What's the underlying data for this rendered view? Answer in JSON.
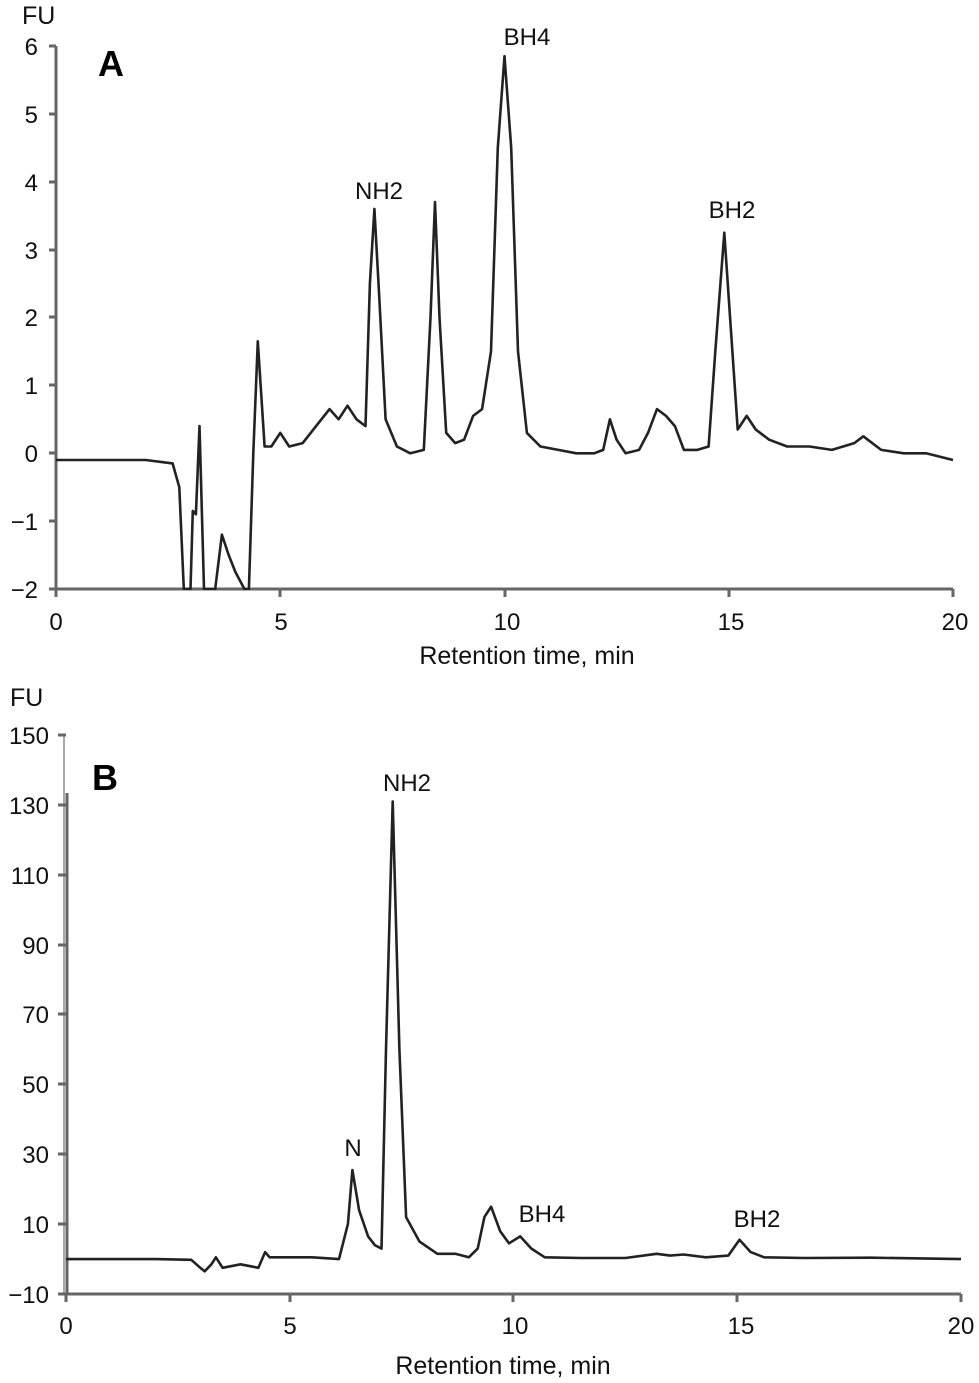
{
  "chart_data": [
    {
      "panel": "A",
      "type": "line",
      "title": "",
      "ylabel": "FU",
      "xlabel": "Retention time, min",
      "xlim": [
        0,
        20
      ],
      "ylim": [
        -2,
        6
      ],
      "x_ticks": [
        "0",
        "5",
        "10",
        "15",
        "20"
      ],
      "y_ticks": [
        "−2",
        "−1",
        "0",
        "1",
        "2",
        "3",
        "4",
        "5",
        "6"
      ],
      "grid": false,
      "annotations": [
        {
          "text": "NH2",
          "x": 7.1,
          "y": 3.6
        },
        {
          "text": "BH4",
          "x": 10.0,
          "y": 5.85
        },
        {
          "text": "BH2",
          "x": 14.9,
          "y": 3.25
        }
      ],
      "series": [
        {
          "name": "chromatogram A",
          "x": [
            0,
            1,
            2,
            2.6,
            2.75,
            2.85,
            3.0,
            3.05,
            3.12,
            3.2,
            3.3,
            3.4,
            3.55,
            3.7,
            3.85,
            4.0,
            4.2,
            4.3,
            4.4,
            4.5,
            4.65,
            4.8,
            5.0,
            5.2,
            5.5,
            5.8,
            6.1,
            6.3,
            6.5,
            6.7,
            6.9,
            7.0,
            7.1,
            7.2,
            7.35,
            7.6,
            7.9,
            8.2,
            8.35,
            8.45,
            8.55,
            8.7,
            8.9,
            9.1,
            9.3,
            9.5,
            9.7,
            9.85,
            10.0,
            10.15,
            10.3,
            10.5,
            10.8,
            11.2,
            11.6,
            12.0,
            12.2,
            12.35,
            12.5,
            12.7,
            13.0,
            13.2,
            13.4,
            13.6,
            13.8,
            14.0,
            14.3,
            14.55,
            14.7,
            14.9,
            15.05,
            15.2,
            15.4,
            15.6,
            15.9,
            16.3,
            16.8,
            17.3,
            17.8,
            18.0,
            18.4,
            18.9,
            19.4,
            20.0
          ],
          "values": [
            -0.1,
            -0.1,
            -0.1,
            -0.15,
            -0.5,
            -2.0,
            -2.0,
            -0.85,
            -0.9,
            0.4,
            -2.0,
            -2.0,
            -2.0,
            -1.2,
            -1.5,
            -1.75,
            -2.0,
            -2.0,
            0.0,
            1.65,
            0.1,
            0.1,
            0.3,
            0.1,
            0.15,
            0.4,
            0.65,
            0.5,
            0.7,
            0.5,
            0.4,
            2.5,
            3.6,
            2.4,
            0.5,
            0.1,
            0.0,
            0.05,
            2.0,
            3.7,
            2.0,
            0.3,
            0.15,
            0.2,
            0.55,
            0.65,
            1.5,
            4.5,
            5.85,
            4.5,
            1.5,
            0.3,
            0.1,
            0.05,
            0.0,
            0.0,
            0.05,
            0.5,
            0.2,
            0.0,
            0.05,
            0.3,
            0.65,
            0.55,
            0.4,
            0.05,
            0.05,
            0.1,
            1.5,
            3.25,
            1.8,
            0.35,
            0.55,
            0.35,
            0.2,
            0.1,
            0.1,
            0.05,
            0.15,
            0.25,
            0.05,
            0.0,
            0.0,
            -0.1
          ]
        }
      ]
    },
    {
      "panel": "B",
      "type": "line",
      "title": "",
      "ylabel": "FU",
      "xlabel": "Retention time, min",
      "xlim": [
        0,
        20
      ],
      "ylim": [
        -10,
        150
      ],
      "x_ticks": [
        "0",
        "5",
        "10",
        "15",
        "20"
      ],
      "y_ticks": [
        "−10",
        "10",
        "30",
        "50",
        "70",
        "90",
        "110",
        "130",
        "150"
      ],
      "grid": false,
      "annotations": [
        {
          "text": "N",
          "x": 6.4,
          "y": 26
        },
        {
          "text": "NH2",
          "x": 7.3,
          "y": 131
        },
        {
          "text": "BH4",
          "x": 10.2,
          "y": 6.5
        },
        {
          "text": "BH2",
          "x": 15.1,
          "y": 6
        }
      ],
      "series": [
        {
          "name": "chromatogram B",
          "x": [
            0,
            1,
            2,
            2.8,
            3.0,
            3.1,
            3.25,
            3.35,
            3.5,
            3.9,
            4.3,
            4.45,
            4.55,
            4.8,
            5.5,
            6.1,
            6.3,
            6.4,
            6.55,
            6.75,
            6.9,
            7.05,
            7.15,
            7.3,
            7.45,
            7.6,
            7.9,
            8.3,
            8.7,
            9.0,
            9.2,
            9.35,
            9.5,
            9.7,
            9.9,
            10.15,
            10.4,
            10.7,
            11.5,
            12.5,
            13.2,
            13.5,
            13.8,
            14.3,
            14.8,
            15.05,
            15.3,
            15.6,
            16.5,
            18.0,
            20.0
          ],
          "values": [
            0,
            0,
            0,
            -0.2,
            -2.5,
            -3.5,
            -1.5,
            0.5,
            -2.5,
            -1.5,
            -2.5,
            2.0,
            0.5,
            0.5,
            0.5,
            0.0,
            10.0,
            25.5,
            14.0,
            6.5,
            4.0,
            3.0,
            60.0,
            131.0,
            60.0,
            12.0,
            5.0,
            1.5,
            1.5,
            0.5,
            3.0,
            12.0,
            15.0,
            8.0,
            4.5,
            6.5,
            3.0,
            0.5,
            0.3,
            0.3,
            1.5,
            1.0,
            1.3,
            0.5,
            1.0,
            5.5,
            2.0,
            0.5,
            0.3,
            0.4,
            0.0
          ]
        }
      ]
    }
  ],
  "panelA": {
    "letter": "A",
    "y_unit": "FU",
    "xlabel": "Retention time, min",
    "x_ticks": [
      "0",
      "5",
      "10",
      "15",
      "20"
    ],
    "y_ticks": [
      "6",
      "5",
      "4",
      "3",
      "2",
      "1",
      "0",
      "−1",
      "−2"
    ],
    "peaks": [
      "NH2",
      "BH4",
      "BH2"
    ]
  },
  "panelB": {
    "letter": "B",
    "y_unit": "FU",
    "xlabel": "Retention time, min",
    "x_ticks": [
      "0",
      "5",
      "10",
      "15",
      "20"
    ],
    "y_ticks": [
      "150",
      "130",
      "110",
      "90",
      "70",
      "50",
      "30",
      "10",
      "−10"
    ],
    "peaks": [
      "N",
      "NH2",
      "BH4",
      "BH2"
    ]
  }
}
